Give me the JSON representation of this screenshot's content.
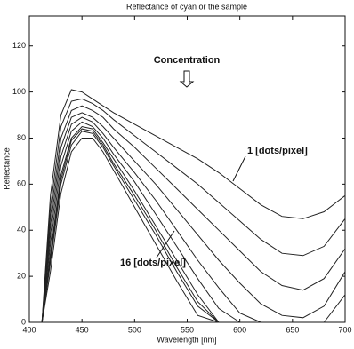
{
  "chart_data": {
    "type": "line",
    "title": "Reflectance of cyan or the sample",
    "x_label": "Wavelength [nm]",
    "y_label": "Reflectance",
    "annotations": [
      "Concentration",
      "1 [dots/pixel]",
      "16 [dots/pixel]"
    ],
    "x": [
      412,
      420,
      430,
      440,
      450,
      460,
      470,
      480,
      500,
      520,
      540,
      560,
      580,
      600,
      620,
      640,
      660,
      680,
      700
    ],
    "series": [
      {
        "color": "#222",
        "values": [
          0,
          55,
          90,
          101,
          100,
          97,
          94,
          91,
          86,
          81,
          76,
          71,
          65,
          58,
          51,
          46,
          45,
          48,
          55
        ]
      },
      {
        "color": "#222",
        "values": [
          0,
          50,
          85,
          96,
          97,
          95,
          92,
          88,
          81,
          74,
          67,
          60,
          52,
          44,
          36,
          30,
          29,
          33,
          45
        ]
      },
      {
        "color": "#222",
        "values": [
          0,
          46,
          80,
          92,
          94,
          92,
          89,
          84,
          76,
          67,
          58,
          49,
          40,
          31,
          22,
          16,
          14,
          19,
          32
        ]
      },
      {
        "color": "#222",
        "values": [
          0,
          42,
          76,
          89,
          91,
          89,
          85,
          80,
          70,
          60,
          49,
          38,
          27,
          17,
          8,
          3,
          2,
          7,
          22
        ]
      },
      {
        "color": "#222",
        "values": [
          0,
          38,
          72,
          86,
          89,
          87,
          82,
          76,
          65,
          53,
          40,
          27,
          15,
          4,
          0,
          null,
          null,
          0,
          12
        ]
      },
      {
        "color": "#222",
        "values": [
          0,
          34,
          68,
          83,
          87,
          85,
          80,
          73,
          61,
          47,
          33,
          19,
          6,
          0,
          null,
          null,
          null,
          null,
          null
        ]
      },
      {
        "color": "#222",
        "values": [
          0,
          30,
          64,
          80,
          85,
          84,
          78,
          71,
          57,
          42,
          27,
          12,
          0,
          null,
          null,
          null,
          null,
          null,
          null
        ]
      },
      {
        "color": "#222",
        "values": [
          0,
          28,
          62,
          79,
          84,
          83,
          77,
          69,
          55,
          40,
          24,
          9,
          0,
          null,
          null,
          null,
          null,
          null,
          null
        ]
      },
      {
        "color": "#222",
        "values": [
          0,
          26,
          60,
          77,
          83,
          82,
          76,
          68,
          53,
          38,
          22,
          7,
          0,
          null,
          null,
          null,
          null,
          null,
          null
        ]
      },
      {
        "color": "#222",
        "values": [
          0,
          22,
          56,
          74,
          80,
          80,
          74,
          66,
          50,
          34,
          18,
          3,
          0,
          null,
          null,
          null,
          null,
          null,
          null
        ]
      }
    ],
    "xlim": [
      400,
      700
    ],
    "xticks": [
      400,
      450,
      500,
      550,
      600,
      650,
      700
    ],
    "ylim": [
      0,
      133
    ],
    "yticks": [
      0,
      20,
      40,
      60,
      80,
      100,
      120
    ],
    "grid": false
  }
}
